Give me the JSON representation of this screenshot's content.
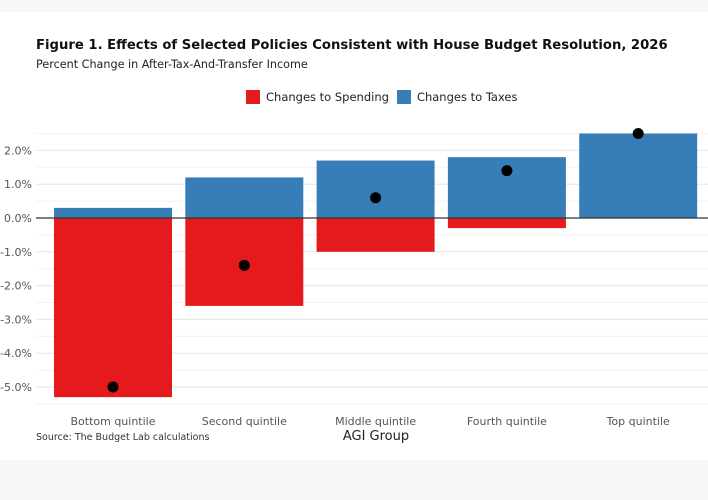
{
  "chart_data": {
    "type": "bar",
    "title": "Figure 1. Effects of Selected Policies Consistent with House Budget Resolution, 2026",
    "subtitle": "Percent Change in After-Tax-And-Transfer Income",
    "xlabel": "AGI Group",
    "ylabel": "",
    "categories": [
      "Bottom quintile",
      "Second quintile",
      "Middle quintile",
      "Fourth quintile",
      "Top quintile"
    ],
    "series": [
      {
        "name": "Changes to Spending",
        "values": [
          -5.3,
          -2.6,
          -1.0,
          -0.3,
          0.0
        ]
      },
      {
        "name": "Changes to Taxes",
        "values": [
          0.3,
          1.2,
          1.7,
          1.8,
          2.5
        ]
      }
    ],
    "net_points": [
      -5.0,
      -1.4,
      0.6,
      1.4,
      2.5
    ],
    "ylim": [
      -5.5,
      2.5
    ],
    "yticks": [
      -5,
      -4,
      -3,
      -2,
      -1,
      0,
      1,
      2
    ],
    "ytick_labels": [
      "-5.0%",
      "-4.0%",
      "-3.0%",
      "-2.0%",
      "-1.0%",
      "0.0%",
      "1.0%",
      "2.0%"
    ],
    "legend_position": "top",
    "grid": true,
    "colors": {
      "spending": "#e41a1c",
      "taxes": "#377eb8",
      "point": "#000000"
    },
    "source": "Source: The Budget Lab calculations"
  }
}
